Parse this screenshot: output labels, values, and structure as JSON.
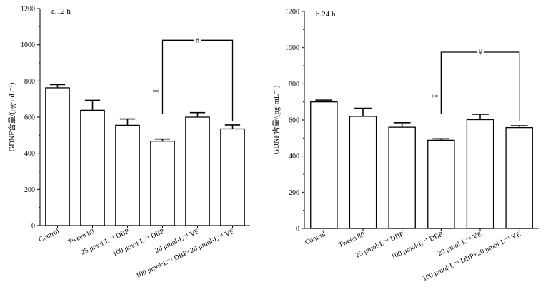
{
  "chart_data": [
    {
      "type": "bar",
      "title": "a.12 h",
      "xlabel": "",
      "ylabel": "GDNF含量/(pg·mL⁻¹)",
      "ylim": [
        0,
        1200
      ],
      "yticks": [
        0,
        200,
        400,
        600,
        800,
        1000,
        1200
      ],
      "categories": [
        "Control",
        "Tween 80",
        "25 μmol·L⁻¹ DBP",
        "100 μmol·L⁻¹ DBP",
        "20 μmol·L⁻¹ VE",
        "100 μmol·L⁻¹ DBP+20 μmol·L⁻¹ VE"
      ],
      "values": [
        762,
        638,
        555,
        467,
        600,
        535
      ],
      "errors": [
        18,
        55,
        35,
        12,
        25,
        22
      ],
      "significance": [
        {
          "category_index": 3,
          "label": "**"
        }
      ],
      "bracket": {
        "from": 3,
        "to": 5,
        "label": "#",
        "top_value": 1025
      }
    },
    {
      "type": "bar",
      "title": "b.24 h",
      "xlabel": "",
      "ylabel": "GDNF含量/(pg·mL⁻¹)",
      "ylim": [
        0,
        1200
      ],
      "yticks": [
        0,
        200,
        400,
        600,
        800,
        1000,
        1200
      ],
      "categories": [
        "Control",
        "Tween 80",
        "25 μmol·L⁻¹ DBP",
        "100 μmol·L⁻¹ DBP",
        "20 μmol·L⁻¹ VE",
        "100 μmol·L⁻¹ DBP+20 μmol·L⁻¹ VE"
      ],
      "values": [
        700,
        620,
        560,
        488,
        602,
        558
      ],
      "errors": [
        10,
        45,
        25,
        8,
        30,
        10
      ],
      "significance": [
        {
          "category_index": 3,
          "label": "**"
        }
      ],
      "bracket": {
        "from": 3,
        "to": 5,
        "label": "#",
        "top_value": 975
      }
    }
  ]
}
